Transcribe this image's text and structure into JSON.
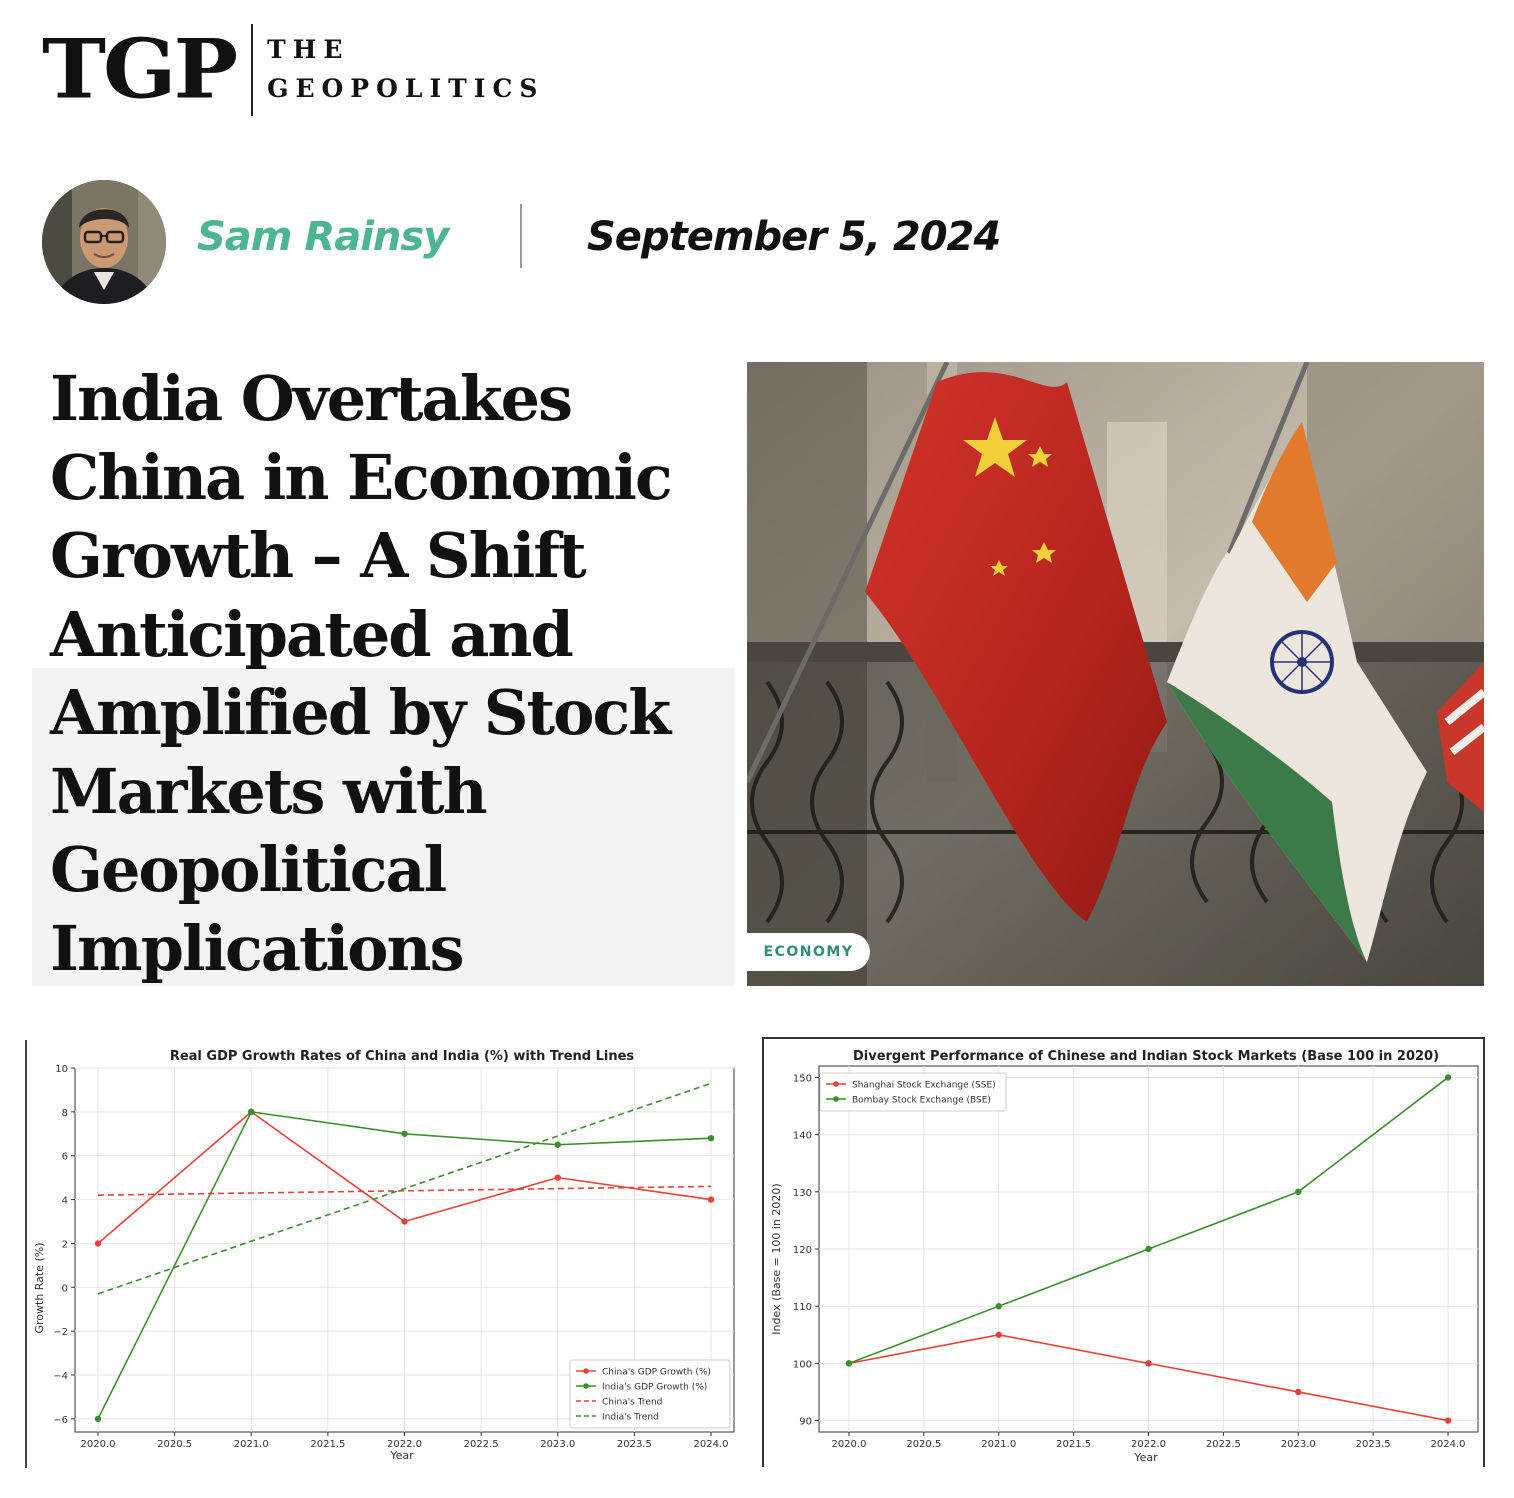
{
  "brand": {
    "mark": "TGP",
    "line1": "THE",
    "line2": "GEOPOLITICS"
  },
  "author": {
    "name": "Sam Rainsy",
    "avatar_icon": "author-portrait"
  },
  "date": "September 5, 2024",
  "headline": "India Overtakes China in Economic Growth – A Shift Anticipated and Amplified by Stock Markets with Geopolitical Implications",
  "image": {
    "icon": "china-india-flags-photo"
  },
  "tag": "ECONOMY",
  "colors": {
    "accent": "#4eb592",
    "tag_text": "#2f8f72",
    "china": "#e8413a",
    "india": "#3a8f2c"
  },
  "chart_data": [
    {
      "type": "line",
      "title": "Real GDP Growth Rates of China and India (%) with Trend Lines",
      "xlabel": "Year",
      "ylabel": "Growth Rate (%)",
      "x": [
        2020,
        2021,
        2022,
        2023,
        2024
      ],
      "xlim": [
        2019.85,
        2024.15
      ],
      "ylim": [
        -6.6,
        10
      ],
      "xticks": [
        "2020.0",
        "2020.5",
        "2021.0",
        "2021.5",
        "2022.0",
        "2022.5",
        "2023.0",
        "2023.5",
        "2024.0"
      ],
      "yticks": [
        "−6",
        "−4",
        "−2",
        "0",
        "2",
        "4",
        "6",
        "8",
        "10"
      ],
      "grid": true,
      "legend_position": "lower-right",
      "series": [
        {
          "name": "China's GDP Growth (%)",
          "values": [
            2,
            8,
            3,
            5,
            4
          ],
          "color": "#e8413a",
          "style": "solid",
          "markers": true
        },
        {
          "name": "India's GDP Growth (%)",
          "values": [
            -6,
            8,
            7,
            6.5,
            6.8
          ],
          "color": "#3a8f2c",
          "style": "solid",
          "markers": true
        },
        {
          "name": "China's Trend",
          "values": [
            4.2,
            4.3,
            4.4,
            4.5,
            4.6
          ],
          "color": "#e8413a",
          "style": "dashed",
          "markers": false
        },
        {
          "name": "India's Trend",
          "values": [
            -0.3,
            2.1,
            4.5,
            6.9,
            9.3
          ],
          "color": "#3a8f2c",
          "style": "dashed",
          "markers": false
        }
      ]
    },
    {
      "type": "line",
      "title": "Divergent Performance of Chinese and Indian Stock Markets (Base 100 in 2020)",
      "xlabel": "Year",
      "ylabel": "Index (Base = 100 in 2020)",
      "x": [
        2020,
        2021,
        2022,
        2023,
        2024
      ],
      "xlim": [
        2019.8,
        2024.2
      ],
      "ylim": [
        88,
        152
      ],
      "xticks": [
        "2020.0",
        "2020.5",
        "2021.0",
        "2021.5",
        "2022.0",
        "2022.5",
        "2023.0",
        "2023.5",
        "2024.0"
      ],
      "yticks": [
        "90",
        "100",
        "110",
        "120",
        "130",
        "140",
        "150"
      ],
      "grid": true,
      "legend_position": "top-left",
      "series": [
        {
          "name": "Shanghai Stock Exchange (SSE)",
          "values": [
            100,
            105,
            100,
            95,
            90
          ],
          "color": "#e8413a",
          "style": "solid",
          "markers": true
        },
        {
          "name": "Bombay Stock Exchange (BSE)",
          "values": [
            100,
            110,
            120,
            130,
            150
          ],
          "color": "#3a8f2c",
          "style": "solid",
          "markers": true
        }
      ]
    }
  ]
}
